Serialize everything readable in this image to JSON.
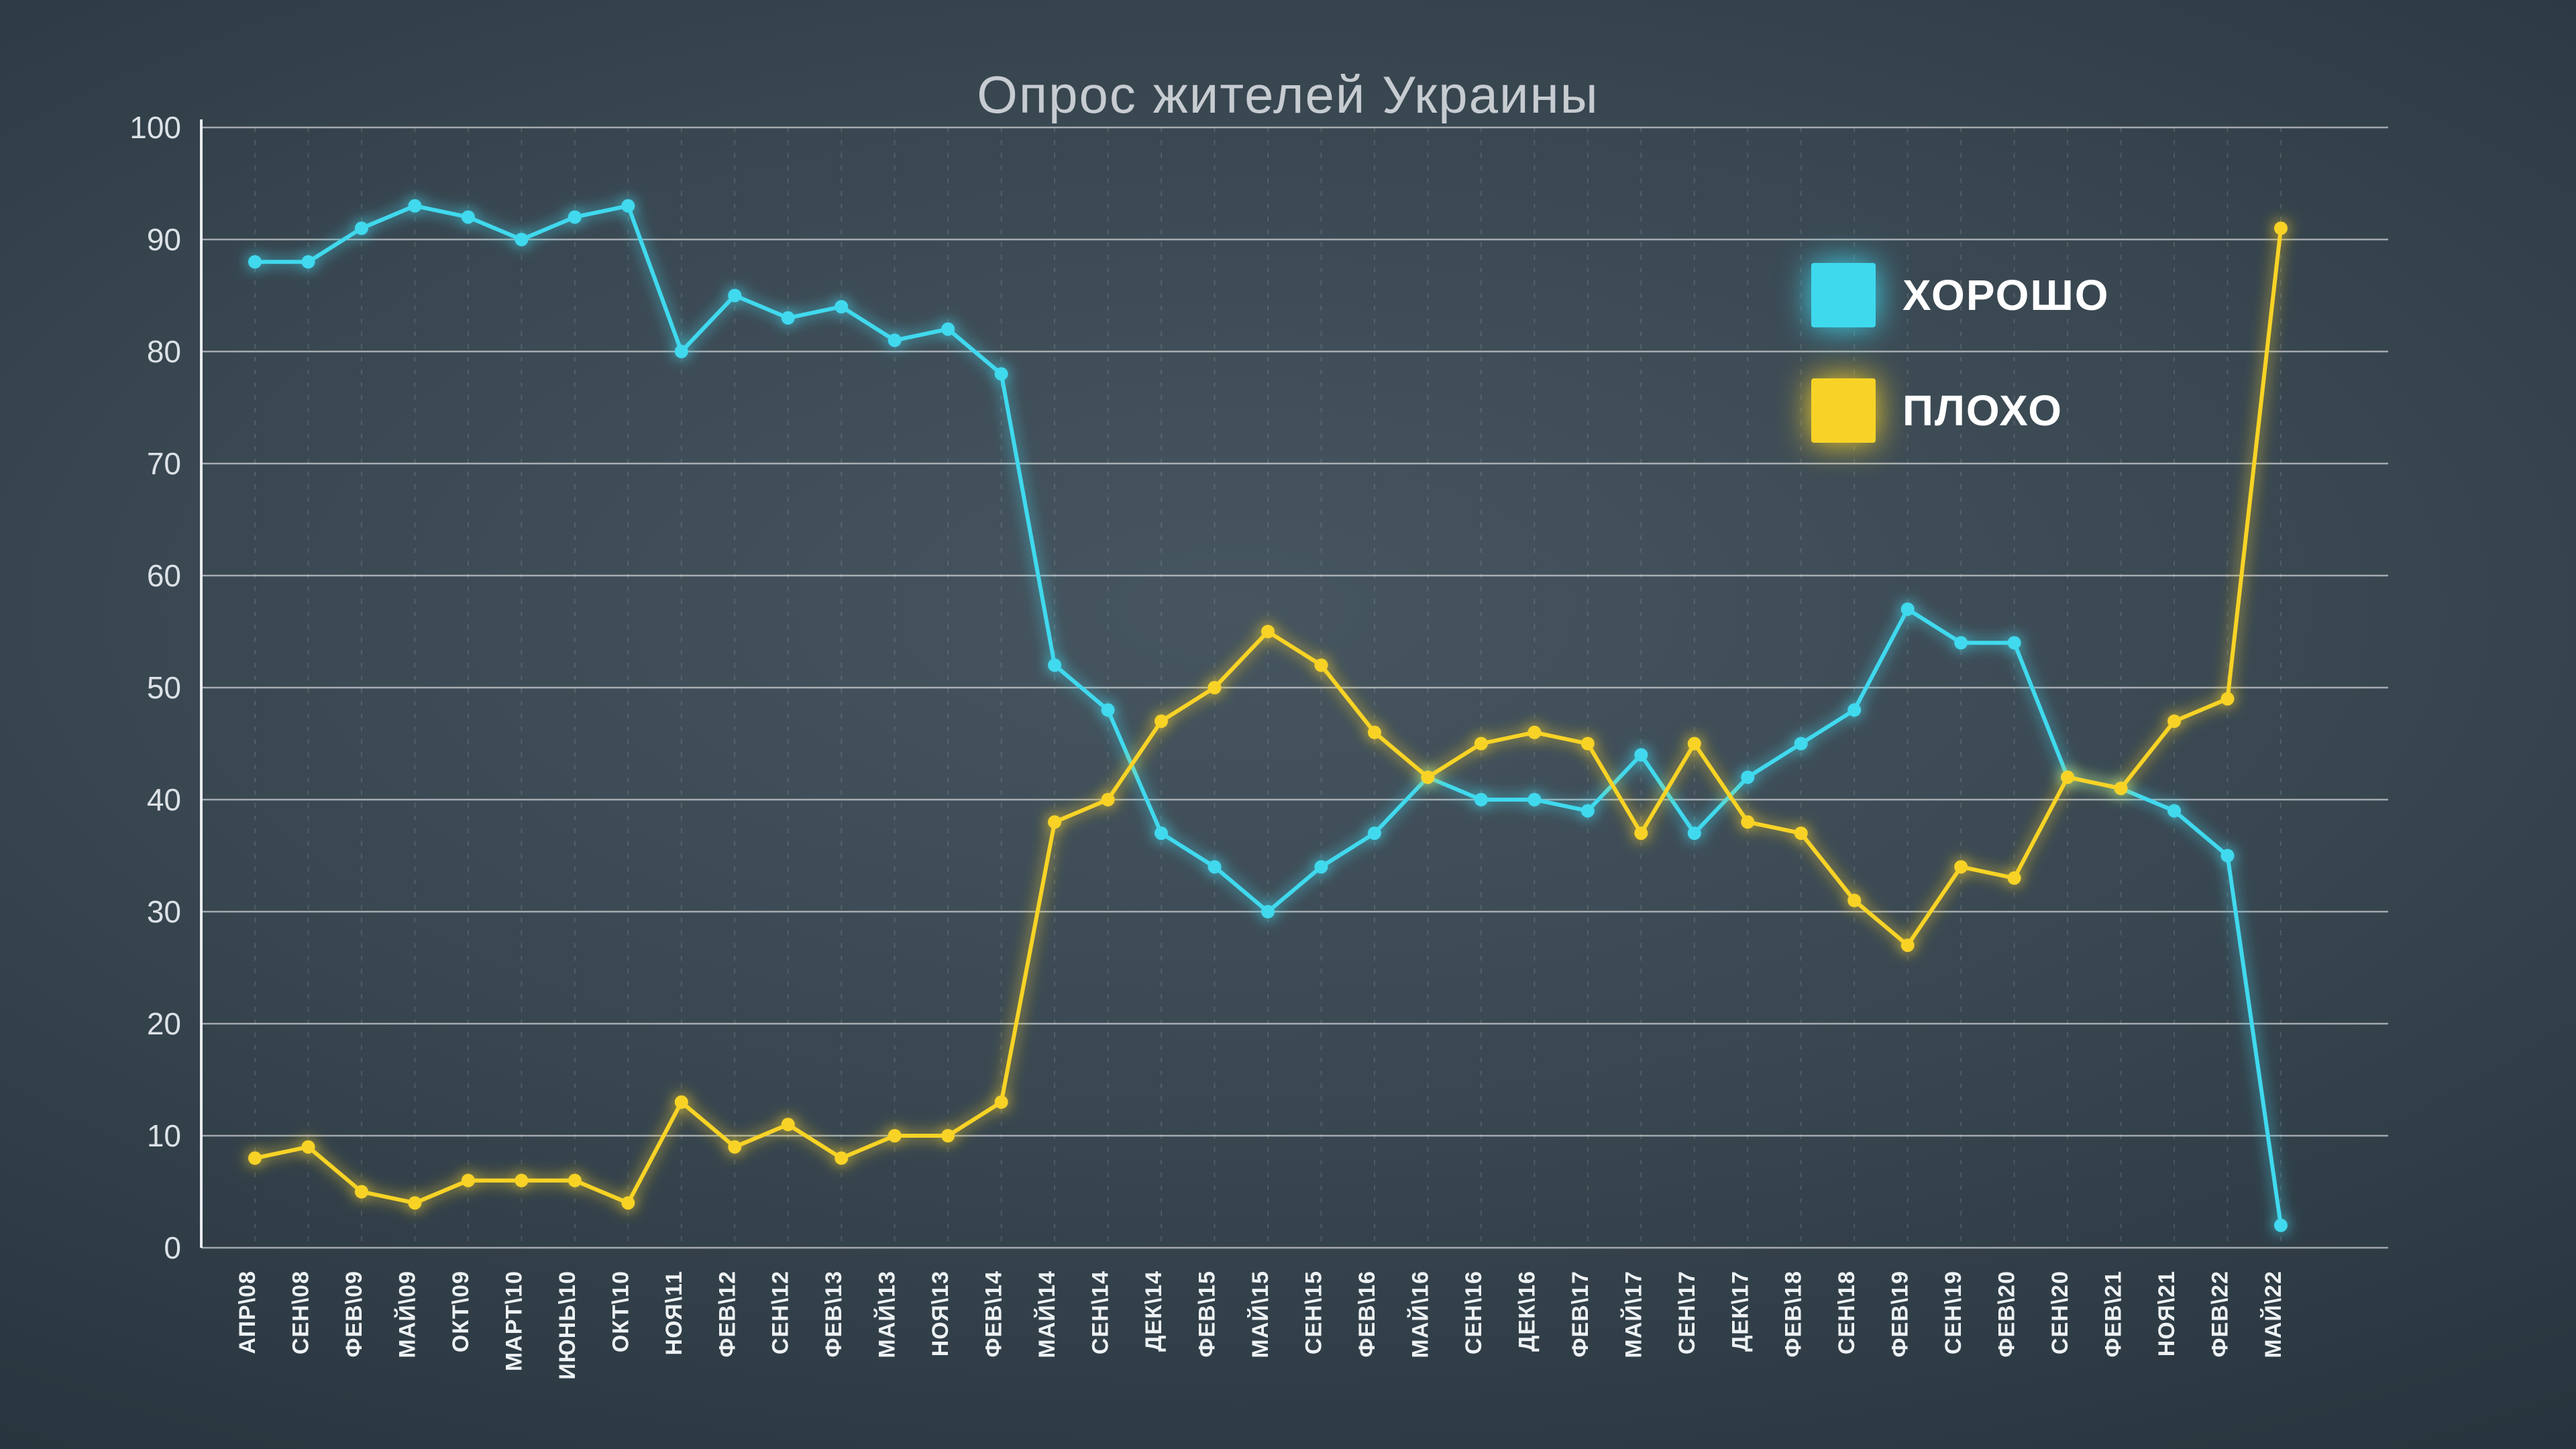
{
  "title": "Опрос жителей Украины",
  "legend": {
    "good_label": "ХОРОШО",
    "bad_label": "ПЛОХО"
  },
  "colors": {
    "good": "#3fd9ee",
    "bad": "#f8d327",
    "gridline": "rgba(255,255,255,0.55)",
    "background_center": "#46555f",
    "background_edge": "#141f27"
  },
  "chart_data": {
    "type": "line",
    "title": "Опрос жителей Украины",
    "categories": [
      "АПР\\08",
      "СЕН\\08",
      "ФЕВ\\09",
      "МАЙ\\09",
      "ОКТ\\09",
      "МАРТ\\10",
      "ИЮНЬ\\10",
      "ОКТ\\10",
      "НОЯ\\11",
      "ФЕВ\\12",
      "СЕН\\12",
      "ФЕВ\\13",
      "МАЙ\\13",
      "НОЯ\\13",
      "ФЕВ\\14",
      "МАЙ\\14",
      "СЕН\\14",
      "ДЕК\\14",
      "ФЕВ\\15",
      "МАЙ\\15",
      "СЕН\\15",
      "ФЕВ\\16",
      "МАЙ\\16",
      "СЕН\\16",
      "ДЕК\\16",
      "ФЕВ\\17",
      "МАЙ\\17",
      "СЕН\\17",
      "ДЕК\\17",
      "ФЕВ\\18",
      "СЕН\\18",
      "ФЕВ\\19",
      "СЕН\\19",
      "ФЕВ\\20",
      "СЕН\\20",
      "ФЕВ\\21",
      "НОЯ\\21",
      "ФЕВ\\22",
      "МАЙ\\22"
    ],
    "series": [
      {
        "name": "ХОРОШО",
        "color": "#3fd9ee",
        "values": [
          88,
          88,
          91,
          93,
          92,
          90,
          92,
          93,
          80,
          85,
          83,
          84,
          81,
          82,
          78,
          52,
          48,
          37,
          34,
          30,
          34,
          37,
          42,
          40,
          40,
          39,
          44,
          37,
          42,
          45,
          48,
          57,
          54,
          54,
          42,
          41,
          39,
          35,
          2
        ]
      },
      {
        "name": "ПЛОХО",
        "color": "#f8d327",
        "values": [
          8,
          9,
          5,
          4,
          6,
          6,
          6,
          4,
          13,
          9,
          11,
          8,
          10,
          10,
          13,
          38,
          40,
          47,
          50,
          55,
          52,
          46,
          42,
          45,
          46,
          45,
          37,
          45,
          38,
          37,
          31,
          27,
          34,
          33,
          42,
          41,
          47,
          49,
          91
        ]
      }
    ],
    "ylim": [
      0,
      100
    ],
    "ytick_step": 10,
    "grid": true,
    "legend_position": "top-right",
    "xlabel": "",
    "ylabel": ""
  }
}
